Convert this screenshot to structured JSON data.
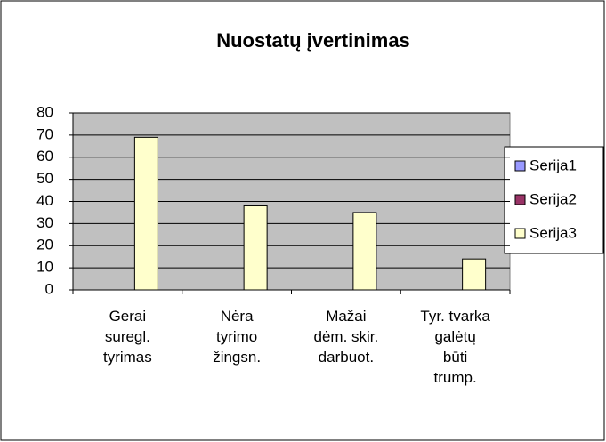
{
  "chart_data": {
    "type": "bar",
    "title": "Nuostatų įvertinimas",
    "categories": [
      "Gerai\nsuregl.\ntyrimas",
      "Nėra\ntyrimo\nžingsn.",
      "Mažai\ndėm. skir.\ndarbuot.",
      "Tyr. tvarka\ngalėtų\nbūti\ntrump."
    ],
    "series": [
      {
        "name": "Serija1",
        "color": "#9999ff",
        "values": [
          null,
          null,
          null,
          null
        ]
      },
      {
        "name": "Serija2",
        "color": "#993366",
        "values": [
          null,
          null,
          null,
          null
        ]
      },
      {
        "name": "Serija3",
        "color": "#ffffcc",
        "values": [
          69,
          38,
          35,
          14
        ]
      }
    ],
    "ylim": [
      0,
      80
    ],
    "yticks": [
      0,
      10,
      20,
      30,
      40,
      50,
      60,
      70,
      80
    ],
    "grid": true,
    "legend": "right"
  }
}
